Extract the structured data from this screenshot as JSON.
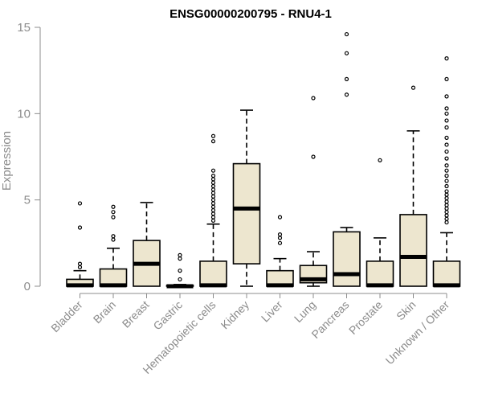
{
  "chart_data": {
    "type": "boxplot",
    "title": "ENSG00000200795 - RNU4-1",
    "ylabel": "Expression",
    "xlabel": "",
    "ylim": [
      0,
      15
    ],
    "yticks": [
      0,
      5,
      10,
      15
    ],
    "grid": false,
    "colors": {
      "box_fill": "#ede6cf",
      "box_stroke": "#000000",
      "axis": "#8c8c8c"
    },
    "categories": [
      "Bladder",
      "Brain",
      "Breast",
      "Gastric",
      "Hematopoietic cells",
      "Kidney",
      "Liver",
      "Lung",
      "Pancreas",
      "Prostate",
      "Skin",
      "Unknown / Other"
    ],
    "boxes": [
      {
        "whisker_low": 0,
        "q1": 0,
        "median": 0.05,
        "q3": 0.4,
        "whisker_high": 0.9,
        "outliers": [
          1.1,
          1.3,
          3.4,
          4.8
        ]
      },
      {
        "whisker_low": 0,
        "q1": 0,
        "median": 0.05,
        "q3": 1.0,
        "whisker_high": 2.2,
        "outliers": [
          2.7,
          2.9,
          4.0,
          4.3,
          4.6
        ]
      },
      {
        "whisker_low": 0,
        "q1": 0,
        "median": 1.3,
        "q3": 2.65,
        "whisker_high": 4.85,
        "outliers": []
      },
      {
        "whisker_low": 0,
        "q1": 0,
        "median": 0.0,
        "q3": 0.05,
        "whisker_high": 0.1,
        "outliers": [
          0.4,
          0.9,
          1.6,
          1.8
        ]
      },
      {
        "whisker_low": 0,
        "q1": 0,
        "median": 0.05,
        "q3": 1.45,
        "whisker_high": 3.6,
        "outliers": [
          3.8,
          4.0,
          4.2,
          4.4,
          4.6,
          4.8,
          5.0,
          5.2,
          5.4,
          5.6,
          5.8,
          6.0,
          6.2,
          6.4,
          6.7,
          8.4,
          8.7
        ]
      },
      {
        "whisker_low": 0,
        "q1": 1.3,
        "median": 4.5,
        "q3": 7.1,
        "whisker_high": 10.2,
        "outliers": []
      },
      {
        "whisker_low": 0,
        "q1": 0,
        "median": 0.05,
        "q3": 0.9,
        "whisker_high": 1.6,
        "outliers": [
          2.5,
          2.8,
          3.0,
          4.0
        ]
      },
      {
        "whisker_low": 0,
        "q1": 0.2,
        "median": 0.4,
        "q3": 1.2,
        "whisker_high": 2.0,
        "outliers": [
          7.5,
          10.9
        ]
      },
      {
        "whisker_low": 0,
        "q1": 0,
        "median": 0.7,
        "q3": 3.15,
        "whisker_high": 3.4,
        "outliers": [
          11.1,
          12.0,
          13.5,
          14.6
        ]
      },
      {
        "whisker_low": 0,
        "q1": 0,
        "median": 0.05,
        "q3": 1.45,
        "whisker_high": 2.8,
        "outliers": [
          7.3
        ]
      },
      {
        "whisker_low": 0,
        "q1": 0,
        "median": 1.7,
        "q3": 4.15,
        "whisker_high": 9.0,
        "outliers": [
          11.5
        ]
      },
      {
        "whisker_low": 0,
        "q1": 0,
        "median": 0.05,
        "q3": 1.45,
        "whisker_high": 3.1,
        "outliers": [
          3.7,
          3.9,
          4.1,
          4.3,
          4.5,
          4.7,
          4.9,
          5.1,
          5.3,
          5.5,
          5.8,
          6.1,
          6.4,
          6.7,
          7.0,
          7.4,
          7.8,
          8.2,
          8.6,
          9.2,
          9.6,
          10.0,
          10.3,
          11.0,
          12.0,
          13.2
        ]
      }
    ]
  }
}
